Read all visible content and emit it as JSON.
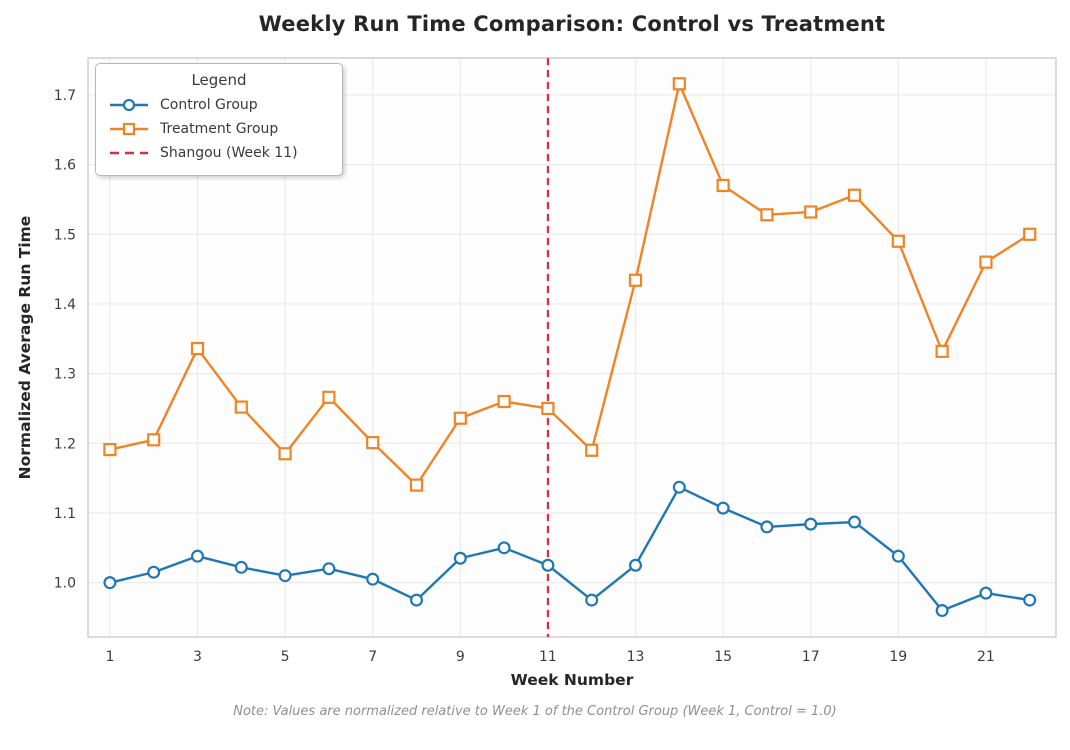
{
  "title": "Weekly Run Time Comparison: Control vs Treatment",
  "note": "Note: Values are normalized relative to Week 1 of the Control Group (Week 1, Control = 1.0)",
  "colors": {
    "control": "#1f77b4",
    "treatment": "#ef8426",
    "vline": "#d62f45",
    "grid": "#ebebeb",
    "spine": "#cccccc",
    "title_text": "#262626",
    "tick_text": "#3d3d3d",
    "axis_label_text": "#262626",
    "note_text": "#8f8f8f",
    "marker_fill": "#ffffff",
    "plot_bg": "#fdfdfd"
  },
  "legend": {
    "title": "Legend",
    "entries": [
      {
        "label": "Control Group",
        "swatch": "line-circle",
        "color_key": "control"
      },
      {
        "label": "Treatment Group",
        "swatch": "line-square",
        "color_key": "treatment"
      },
      {
        "label": "Shangou (Week 11)",
        "swatch": "dashed-line",
        "color_key": "vline"
      }
    ]
  },
  "chart_data": {
    "type": "line",
    "title": "Weekly Run Time Comparison: Control vs Treatment",
    "xlabel": "Week Number",
    "ylabel": "Normalized Average Run Time",
    "x": [
      1,
      2,
      3,
      4,
      5,
      6,
      7,
      8,
      9,
      10,
      11,
      12,
      13,
      14,
      15,
      16,
      17,
      18,
      19,
      20,
      21,
      22
    ],
    "series": [
      {
        "name": "Control Group",
        "color_key": "control",
        "marker": "circle",
        "values": [
          1.0,
          1.015,
          1.038,
          1.022,
          1.01,
          1.02,
          1.005,
          0.975,
          1.035,
          1.05,
          1.025,
          0.975,
          1.025,
          1.137,
          1.107,
          1.08,
          1.084,
          1.087,
          1.038,
          0.96,
          0.985,
          0.975
        ]
      },
      {
        "name": "Treatment Group",
        "color_key": "treatment",
        "marker": "square",
        "values": [
          1.191,
          1.205,
          1.336,
          1.252,
          1.185,
          1.266,
          1.201,
          1.14,
          1.236,
          1.26,
          1.25,
          1.19,
          1.434,
          1.716,
          1.57,
          1.528,
          1.532,
          1.556,
          1.49,
          1.332,
          1.46,
          1.5
        ]
      }
    ],
    "vline": {
      "x": 11,
      "label": "Shangou (Week 11)",
      "style": "dashed",
      "color_key": "vline"
    },
    "xticks": [
      1,
      3,
      5,
      7,
      9,
      11,
      13,
      15,
      17,
      19,
      21
    ],
    "yticks": [
      1.0,
      1.1,
      1.2,
      1.3,
      1.4,
      1.5,
      1.6,
      1.7
    ],
    "xlim": [
      0.5,
      22.6
    ],
    "ylim": [
      0.922,
      1.753
    ],
    "grid": true,
    "legend_position": "upper left"
  }
}
